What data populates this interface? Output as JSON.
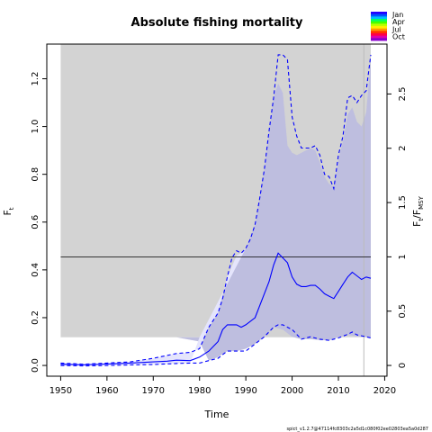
{
  "chart_data": {
    "type": "line",
    "title": "Absolute fishing mortality",
    "xlabel": "Time",
    "ylabel_main": "F",
    "ylabel_main_sub": "t",
    "ylabel_right": "F",
    "ylabel_right_sub": "t",
    "ylabel_right_div": "/F",
    "ylabel_right_div_sub": "MSY",
    "xlim": [
      1947,
      2020.5
    ],
    "ylim": [
      -0.045,
      1.345
    ],
    "x_ticks": [
      1950,
      1960,
      1970,
      1980,
      1990,
      2000,
      2010,
      2020
    ],
    "x_tick_labels": [
      "1950",
      "1960",
      "1970",
      "1980",
      "1990",
      "2000",
      "2010",
      "2020"
    ],
    "y_ticks": [
      0.0,
      0.2,
      0.4,
      0.6,
      0.8,
      1.0,
      1.2
    ],
    "y_tick_labels": [
      "0.0",
      "0.2",
      "0.4",
      "0.6",
      "0.8",
      "1.0",
      "1.2"
    ],
    "right_axis_factor": 0.4545,
    "right_ticks": [
      0,
      0.5,
      1,
      1.5,
      2,
      2.5
    ],
    "right_tick_labels": [
      "0",
      "0.5",
      "1",
      "1.5",
      "2",
      "2.5"
    ],
    "fmsy": 0.4545,
    "last_obs_year": 2015.5,
    "colors": {
      "gray_region": "#d3d3d3",
      "fmsy_ci": "#bebedf",
      "f_ci": "#e5e5fc",
      "line": "#0000ff",
      "fmsy_line": "#000000"
    },
    "gray_box": {
      "x0": 1950,
      "x1": 2017,
      "y0": 0.118,
      "y1": 1.345
    },
    "fmsy_ci_poly": {
      "x": [
        1950,
        1975,
        1980,
        1982,
        1984,
        1986,
        1988,
        1989,
        1990,
        1992,
        1994,
        1996,
        1997,
        1998,
        1999,
        2000,
        2001,
        2002,
        2003,
        2004,
        2005,
        2006,
        2007,
        2008,
        2009,
        2010,
        2011,
        2012,
        2013,
        2014,
        2015,
        2016,
        2017,
        2017,
        2014,
        2012,
        2010,
        2008,
        2006,
        2004,
        2002,
        2000,
        1998,
        1996,
        1994,
        1992,
        1990,
        1988,
        1986,
        1984,
        1982,
        1980,
        1975,
        1950
      ],
      "y": [
        0.118,
        0.118,
        0.118,
        0.16,
        0.22,
        0.37,
        0.46,
        0.47,
        0.49,
        0.59,
        0.82,
        1.12,
        1.18,
        1.14,
        0.92,
        0.89,
        0.88,
        0.89,
        0.9,
        0.91,
        0.9,
        0.85,
        0.79,
        0.76,
        0.75,
        0.86,
        0.94,
        1.05,
        1.08,
        1.02,
        1.0,
        1.06,
        1.28,
        0.118,
        0.122,
        0.128,
        0.118,
        0.105,
        0.106,
        0.11,
        0.11,
        0.12,
        0.15,
        0.16,
        0.12,
        0.09,
        0.07,
        0.06,
        0.06,
        0.035,
        0.02,
        0.1,
        0.118,
        0.118
      ]
    },
    "f_ci_poly": {
      "x": [
        1950,
        1955,
        1960,
        1965,
        1970,
        1975,
        1978,
        1980,
        1982,
        1984,
        1986,
        1988,
        1989,
        1990,
        1980,
        1978,
        1975,
        1970,
        1965,
        1960,
        1955,
        1950
      ],
      "y": [
        0.01,
        0.005,
        0.01,
        0.015,
        0.03,
        0.05,
        0.055,
        0.07,
        0.16,
        0.22,
        0.37,
        0.46,
        0.47,
        0.49,
        0.118,
        0.01,
        0.008,
        0.004,
        0.002,
        0.0,
        -0.002,
        0.0
      ]
    },
    "series": [
      {
        "name": "F estimate",
        "style": "solid",
        "x": [
          1950,
          1955,
          1960,
          1965,
          1970,
          1973,
          1975,
          1978,
          1980,
          1982,
          1984,
          1985,
          1986,
          1988,
          1989,
          1990,
          1992,
          1994,
          1995,
          1996,
          1997,
          1998,
          1999,
          2000,
          2001,
          2002,
          2003,
          2004,
          2005,
          2006,
          2007,
          2008,
          2009,
          2010,
          2011,
          2012,
          2013,
          2014,
          2015,
          2016,
          2017
        ],
        "values": [
          0.005,
          0.003,
          0.006,
          0.01,
          0.015,
          0.018,
          0.022,
          0.02,
          0.035,
          0.06,
          0.1,
          0.15,
          0.17,
          0.17,
          0.16,
          0.17,
          0.2,
          0.3,
          0.35,
          0.42,
          0.47,
          0.45,
          0.43,
          0.37,
          0.34,
          0.33,
          0.33,
          0.335,
          0.335,
          0.32,
          0.3,
          0.29,
          0.28,
          0.31,
          0.34,
          0.37,
          0.39,
          0.375,
          0.36,
          0.37,
          0.365
        ]
      },
      {
        "name": "F upper CI",
        "style": "dashed",
        "x": [
          1950,
          1955,
          1960,
          1965,
          1970,
          1975,
          1978,
          1980,
          1982,
          1984,
          1985,
          1986,
          1987,
          1988,
          1989,
          1990,
          1991,
          1992,
          1993,
          1994,
          1995,
          1996,
          1997,
          1998,
          1999,
          2000,
          2001,
          2002,
          2003,
          2004,
          2005,
          2006,
          2007,
          2008,
          2009,
          2010,
          2011,
          2012,
          2013,
          2014,
          2015,
          2016,
          2017
        ],
        "values": [
          0.01,
          0.005,
          0.01,
          0.015,
          0.03,
          0.05,
          0.055,
          0.07,
          0.16,
          0.22,
          0.28,
          0.37,
          0.45,
          0.48,
          0.47,
          0.49,
          0.53,
          0.59,
          0.7,
          0.82,
          0.98,
          1.12,
          1.3,
          1.3,
          1.28,
          1.04,
          0.96,
          0.91,
          0.91,
          0.91,
          0.92,
          0.88,
          0.8,
          0.79,
          0.74,
          0.88,
          0.96,
          1.12,
          1.13,
          1.1,
          1.13,
          1.15,
          1.3
        ]
      },
      {
        "name": "F lower CI",
        "style": "dashed",
        "x": [
          1950,
          1955,
          1960,
          1965,
          1970,
          1975,
          1978,
          1980,
          1982,
          1984,
          1985,
          1986,
          1988,
          1990,
          1992,
          1994,
          1996,
          1997,
          1998,
          1999,
          2000,
          2002,
          2004,
          2006,
          2008,
          2010,
          2012,
          2013,
          2014,
          2016,
          2017
        ],
        "values": [
          0.0,
          -0.002,
          0.0,
          0.002,
          0.004,
          0.008,
          0.01,
          0.01,
          0.02,
          0.03,
          0.045,
          0.06,
          0.06,
          0.06,
          0.09,
          0.12,
          0.16,
          0.17,
          0.17,
          0.16,
          0.15,
          0.11,
          0.12,
          0.11,
          0.105,
          0.115,
          0.13,
          0.14,
          0.128,
          0.12,
          0.115
        ]
      }
    ],
    "legend": {
      "labels": [
        "Jan",
        "Apr",
        "Jul",
        "Oct"
      ],
      "colors": [
        "#2200ff",
        "#0055ff",
        "#00bbff",
        "#00ff66",
        "#44ff00",
        "#bbff00",
        "#ffee00",
        "#ff9900",
        "#ff3300",
        "#ff0044",
        "#dd00aa",
        "#8800cc"
      ]
    },
    "footer": "spict_v1.2.7@47114fc8303c2a5d1c080f02ee02803ea5a0d287"
  }
}
